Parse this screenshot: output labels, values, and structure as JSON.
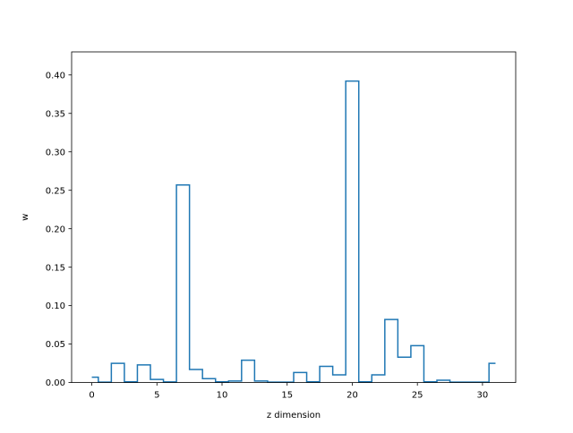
{
  "chart_data": {
    "type": "step",
    "title": "",
    "xlabel": "z dimension",
    "ylabel": "w",
    "xlim": [
      -1.55,
      32.55
    ],
    "ylim": [
      0,
      0.43
    ],
    "xticks": [
      0,
      5,
      10,
      15,
      20,
      25,
      30
    ],
    "yticks": [
      0.0,
      0.05,
      0.1,
      0.15,
      0.2,
      0.25,
      0.3,
      0.35,
      0.4
    ],
    "xtick_labels": [
      "0",
      "5",
      "10",
      "15",
      "20",
      "25",
      "30"
    ],
    "ytick_labels": [
      "0.00",
      "0.05",
      "0.10",
      "0.15",
      "0.20",
      "0.25",
      "0.30",
      "0.35",
      "0.40"
    ],
    "grid": false,
    "step_where": "mid",
    "line_color": "#1f77b4",
    "x": [
      0,
      1,
      2,
      3,
      4,
      5,
      6,
      7,
      8,
      9,
      10,
      11,
      12,
      13,
      14,
      15,
      16,
      17,
      18,
      19,
      20,
      21,
      22,
      23,
      24,
      25,
      26,
      27,
      28,
      29,
      30,
      31
    ],
    "values": [
      0.007,
      0.0005,
      0.025,
      0.001,
      0.023,
      0.004,
      0.0008,
      0.257,
      0.017,
      0.005,
      0.001,
      0.002,
      0.029,
      0.002,
      0.0005,
      0.0005,
      0.013,
      0.001,
      0.021,
      0.01,
      0.392,
      0.001,
      0.01,
      0.082,
      0.033,
      0.048,
      0.001,
      0.003,
      0.0005,
      0.0005,
      0.0005,
      0.025
    ]
  }
}
